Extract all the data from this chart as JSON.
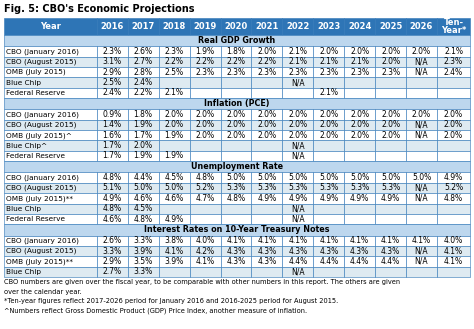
{
  "title": "Fig. 5: CBO's Economic Projections",
  "header_row": [
    "Year",
    "2016",
    "2017",
    "2018",
    "2019",
    "2020",
    "2021",
    "2022",
    "2023",
    "2024",
    "2025",
    "2026",
    "Ten-\nYear*"
  ],
  "sections": [
    {
      "label": "Real GDP Growth",
      "rows": [
        [
          "CBO (January 2016)",
          "2.3%",
          "2.6%",
          "2.3%",
          "1.9%",
          "1.8%",
          "2.0%",
          "2.1%",
          "2.0%",
          "2.0%",
          "2.0%",
          "2.0%",
          "2.1%"
        ],
        [
          "CBO (August 2015)",
          "3.1%",
          "2.7%",
          "2.2%",
          "2.2%",
          "2.2%",
          "2.2%",
          "2.1%",
          "2.1%",
          "2.1%",
          "2.0%",
          "N/A",
          "2.3%"
        ],
        [
          "OMB (July 2015)",
          "2.9%",
          "2.8%",
          "2.5%",
          "2.3%",
          "2.3%",
          "2.3%",
          "2.3%",
          "2.3%",
          "2.3%",
          "2.3%",
          "N/A",
          "2.4%"
        ],
        [
          "Blue Chip",
          "2.5%",
          "2.4%",
          "",
          "",
          "",
          "",
          "N/A",
          "",
          "",
          "",
          "",
          ""
        ],
        [
          "Federal Reserve",
          "2.4%",
          "2.2%",
          "2.1%",
          "",
          "",
          "",
          "",
          "2.1%",
          "",
          "",
          "",
          ""
        ]
      ]
    },
    {
      "label": "Inflation (PCE)",
      "rows": [
        [
          "CBO (January 2016)",
          "0.9%",
          "1.8%",
          "2.0%",
          "2.0%",
          "2.0%",
          "2.0%",
          "2.0%",
          "2.0%",
          "2.0%",
          "2.0%",
          "2.0%",
          "2.0%"
        ],
        [
          "CBO (August 2015)",
          "1.4%",
          "1.9%",
          "2.0%",
          "2.0%",
          "2.0%",
          "2.0%",
          "2.0%",
          "2.0%",
          "2.0%",
          "2.0%",
          "N/A",
          "2.0%"
        ],
        [
          "OMB (July 2015)^",
          "1.6%",
          "1.7%",
          "1.9%",
          "2.0%",
          "2.0%",
          "2.0%",
          "2.0%",
          "2.0%",
          "2.0%",
          "2.0%",
          "N/A",
          "2.0%"
        ],
        [
          "Blue Chip^",
          "1.7%",
          "2.0%",
          "",
          "",
          "",
          "",
          "N/A",
          "",
          "",
          "",
          "",
          ""
        ],
        [
          "Federal Reserve",
          "1.7%",
          "1.9%",
          "1.9%",
          "",
          "",
          "",
          "N/A",
          "",
          "",
          "",
          "",
          ""
        ]
      ]
    },
    {
      "label": "Unemployment Rate",
      "rows": [
        [
          "CBO (January 2016)",
          "4.8%",
          "4.4%",
          "4.5%",
          "4.8%",
          "5.0%",
          "5.0%",
          "5.0%",
          "5.0%",
          "5.0%",
          "5.0%",
          "5.0%",
          "4.9%"
        ],
        [
          "CBO (August 2015)",
          "5.1%",
          "5.0%",
          "5.0%",
          "5.2%",
          "5.3%",
          "5.3%",
          "5.3%",
          "5.3%",
          "5.3%",
          "5.3%",
          "N/A",
          "5.2%"
        ],
        [
          "OMB (July 2015)**",
          "4.9%",
          "4.6%",
          "4.6%",
          "4.7%",
          "4.8%",
          "4.9%",
          "4.9%",
          "4.9%",
          "4.9%",
          "4.9%",
          "N/A",
          "4.8%"
        ],
        [
          "Blue Chip",
          "4.8%",
          "4.5%",
          "",
          "",
          "",
          "",
          "N/A",
          "",
          "",
          "",
          "",
          ""
        ],
        [
          "Federal Reserve",
          "4.6%",
          "4.8%",
          "4.9%",
          "",
          "",
          "",
          "N/A",
          "",
          "",
          "",
          "",
          ""
        ]
      ]
    },
    {
      "label": "Interest Rates on 10-Year Treasury Notes",
      "rows": [
        [
          "CBO (January 2016)",
          "2.6%",
          "3.3%",
          "3.8%",
          "4.0%",
          "4.1%",
          "4.1%",
          "4.1%",
          "4.1%",
          "4.1%",
          "4.1%",
          "4.1%",
          "4.0%"
        ],
        [
          "CBO (August 2015)",
          "3.3%",
          "3.9%",
          "4.1%",
          "4.2%",
          "4.3%",
          "4.3%",
          "4.3%",
          "4.3%",
          "4.3%",
          "4.3%",
          "N/A",
          "4.1%"
        ],
        [
          "OMB (July 2015)**",
          "2.9%",
          "3.5%",
          "3.9%",
          "4.1%",
          "4.3%",
          "4.3%",
          "4.4%",
          "4.4%",
          "4.4%",
          "4.4%",
          "N/A",
          "4.1%"
        ],
        [
          "Blue Chip",
          "2.7%",
          "3.3%",
          "",
          "",
          "",
          "",
          "N/A",
          "",
          "",
          "",
          "",
          ""
        ]
      ]
    }
  ],
  "footnotes": [
    "CBO numbers are given over the fiscal year, to be comparable with other numbers in this report. The others are given",
    "over the calendar year.",
    "*Ten-year figures reflect 2017-2026 period for January 2016 and 2016-2025 period for August 2015.",
    "^Numbers reflect Gross Domestic Product (GDP) Price Index, another measure of inflation."
  ],
  "header_bg": "#2E75B6",
  "header_fg": "#FFFFFF",
  "section_bg": "#BDD7EE",
  "section_fg": "#000000",
  "row_bg_odd": "#FFFFFF",
  "row_bg_even": "#DEEAF1",
  "border_color": "#2E75B6",
  "title_color": "#000000",
  "font_size": 5.5,
  "header_font_size": 6.0,
  "title_font_size": 7.0
}
